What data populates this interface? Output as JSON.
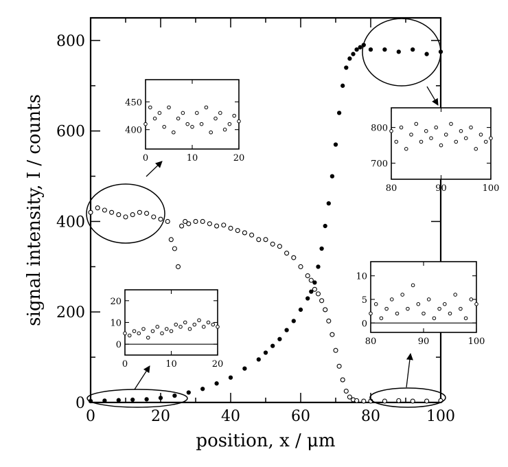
{
  "chart_data": {
    "type": "scatter",
    "xlabel": "position, x / μm",
    "ylabel": "signal intensity, I / counts",
    "xlim": [
      0,
      100
    ],
    "ylim": [
      0,
      850
    ],
    "xticks": [
      0,
      20,
      40,
      60,
      80,
      100
    ],
    "yticks": [
      0,
      200,
      400,
      600,
      800
    ],
    "grid": false,
    "series": [
      {
        "marker": "open-circle",
        "x": [
          0,
          2,
          4,
          6,
          8,
          10,
          12,
          14,
          16,
          18,
          20,
          22,
          23,
          24,
          25,
          26,
          27,
          28,
          30,
          32,
          34,
          36,
          38,
          40,
          42,
          44,
          46,
          48,
          50,
          52,
          54,
          56,
          58,
          60,
          62,
          63,
          64,
          65,
          66,
          67,
          68,
          69,
          70,
          71,
          72,
          73,
          74,
          75,
          76,
          78,
          80,
          84,
          88,
          92,
          96,
          100
        ],
        "y": [
          420,
          430,
          425,
          420,
          415,
          410,
          415,
          420,
          418,
          410,
          405,
          400,
          360,
          340,
          300,
          390,
          400,
          395,
          400,
          400,
          395,
          390,
          392,
          385,
          380,
          375,
          370,
          360,
          360,
          350,
          345,
          330,
          320,
          300,
          280,
          270,
          250,
          240,
          225,
          205,
          180,
          150,
          115,
          80,
          50,
          25,
          12,
          6,
          4,
          3,
          3,
          3,
          4,
          3,
          3,
          4
        ]
      },
      {
        "marker": "filled-circle",
        "x": [
          0,
          4,
          8,
          12,
          16,
          20,
          24,
          28,
          32,
          36,
          40,
          44,
          48,
          50,
          52,
          54,
          56,
          58,
          60,
          62,
          63,
          64,
          65,
          66,
          67,
          68,
          69,
          70,
          71,
          72,
          73,
          74,
          75,
          76,
          77,
          78,
          80,
          84,
          88,
          92,
          96,
          100
        ],
        "y": [
          3,
          4,
          5,
          6,
          7,
          10,
          15,
          22,
          30,
          42,
          55,
          75,
          95,
          110,
          125,
          140,
          160,
          180,
          205,
          230,
          245,
          265,
          300,
          340,
          390,
          440,
          500,
          570,
          640,
          700,
          740,
          760,
          770,
          780,
          785,
          790,
          780,
          780,
          775,
          780,
          770,
          775
        ]
      }
    ],
    "insets": [
      {
        "region": "left-high",
        "xlim": [
          0,
          20
        ],
        "ylim": [
          365,
          490
        ],
        "xticks": [
          0,
          10,
          20
        ],
        "yticks": [
          400,
          450
        ],
        "x": [
          0,
          1,
          2,
          3,
          4,
          5,
          6,
          7,
          8,
          9,
          10,
          11,
          12,
          13,
          14,
          15,
          16,
          17,
          18,
          19,
          20
        ],
        "y": [
          410,
          440,
          420,
          430,
          405,
          440,
          395,
          420,
          430,
          410,
          405,
          430,
          410,
          440,
          395,
          420,
          430,
          400,
          410,
          425,
          415
        ]
      },
      {
        "region": "right-high",
        "xlim": [
          80,
          100
        ],
        "ylim": [
          655,
          855
        ],
        "xticks": [
          80,
          90,
          100
        ],
        "yticks": [
          700,
          800
        ],
        "x": [
          80,
          81,
          82,
          83,
          84,
          85,
          86,
          87,
          88,
          89,
          90,
          91,
          92,
          93,
          94,
          95,
          96,
          97,
          98,
          99,
          100
        ],
        "y": [
          790,
          760,
          800,
          740,
          780,
          810,
          760,
          790,
          770,
          800,
          750,
          780,
          810,
          760,
          790,
          770,
          800,
          740,
          780,
          760,
          770
        ]
      },
      {
        "region": "left-low",
        "xlim": [
          0,
          20
        ],
        "ylim": [
          -5,
          25
        ],
        "xticks": [
          0,
          10,
          20
        ],
        "yticks": [
          0,
          10,
          20
        ],
        "x": [
          0,
          1,
          2,
          3,
          4,
          5,
          6,
          7,
          8,
          9,
          10,
          11,
          12,
          13,
          14,
          15,
          16,
          17,
          18,
          19,
          20
        ],
        "y": [
          5,
          4,
          6,
          5,
          7,
          3,
          6,
          8,
          5,
          7,
          6,
          9,
          8,
          10,
          7,
          9,
          11,
          8,
          10,
          9,
          8
        ]
      },
      {
        "region": "right-low",
        "xlim": [
          80,
          100
        ],
        "ylim": [
          -2,
          13
        ],
        "xticks": [
          80,
          90,
          100
        ],
        "yticks": [
          0,
          5,
          10
        ],
        "x": [
          80,
          81,
          82,
          83,
          84,
          85,
          86,
          87,
          88,
          89,
          90,
          91,
          92,
          93,
          94,
          95,
          96,
          97,
          98,
          99,
          100
        ],
        "y": [
          2,
          4,
          1,
          3,
          5,
          2,
          6,
          3,
          8,
          4,
          2,
          5,
          1,
          3,
          4,
          2,
          6,
          3,
          1,
          5,
          4
        ]
      }
    ]
  }
}
